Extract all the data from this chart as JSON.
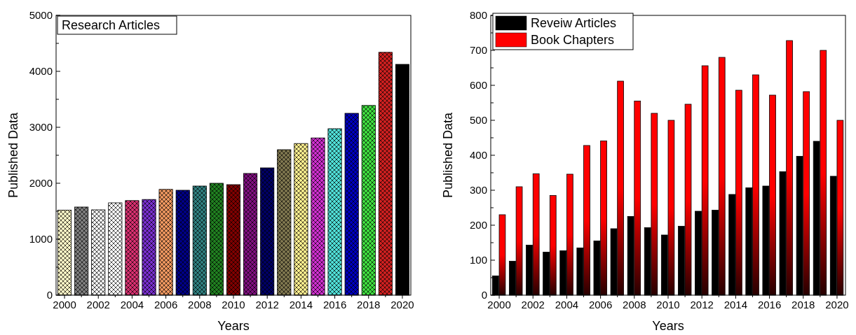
{
  "chart_data": [
    {
      "type": "bar",
      "title": "Research Articles",
      "xlabel": "Years",
      "ylabel": "Published Data",
      "categories": [
        "2000",
        null,
        "2002",
        null,
        "2004",
        null,
        "2006",
        null,
        "2008",
        null,
        "2010",
        null,
        "2012",
        null,
        "2014",
        null,
        "2016",
        null,
        "2018",
        null,
        "2020"
      ],
      "values": [
        1520,
        1575,
        1525,
        1650,
        1690,
        1710,
        1890,
        1875,
        1950,
        2000,
        1975,
        2175,
        2275,
        2600,
        2710,
        2810,
        2975,
        3250,
        3390,
        4340,
        4125
      ],
      "colors": [
        "#fff8c8",
        "#808080",
        "#f2f2f2",
        "#ffffff",
        "#d83070",
        "#7a30d0",
        "#f09860",
        "#000088",
        "#308080",
        "#208020",
        "#800000",
        "#801080",
        "#000066",
        "#807850",
        "#fff090",
        "#d030d0",
        "#50e0d8",
        "#0000c0",
        "#40e040",
        "#d02020",
        "#000000"
      ],
      "ylim": [
        0,
        5000
      ],
      "yticks": [
        0,
        1000,
        2000,
        3000,
        4000,
        5000
      ],
      "legend": false
    },
    {
      "type": "bar",
      "xlabel": "Years",
      "ylabel": "Published Data",
      "categories": [
        "2000",
        null,
        "2002",
        null,
        "2004",
        null,
        "2006",
        null,
        "2008",
        null,
        "2010",
        null,
        "2012",
        null,
        "2014",
        null,
        "2016",
        null,
        "2018",
        null,
        "2020"
      ],
      "series": [
        {
          "name": "Reveiw Articles",
          "color": "#000000",
          "values": [
            55,
            97,
            143,
            123,
            127,
            135,
            155,
            190,
            225,
            193,
            172,
            197,
            240,
            243,
            288,
            307,
            312,
            353,
            397,
            440,
            340
          ]
        },
        {
          "name": "Book Chapters",
          "color": "#ff0000",
          "values": [
            230,
            310,
            347,
            285,
            346,
            428,
            441,
            612,
            555,
            520,
            500,
            546,
            656,
            680,
            586,
            630,
            572,
            728,
            582,
            700,
            500
          ]
        }
      ],
      "ylim": [
        0,
        800
      ],
      "yticks": [
        0,
        100,
        200,
        300,
        400,
        500,
        600,
        700,
        800
      ],
      "legend": "top left"
    }
  ]
}
